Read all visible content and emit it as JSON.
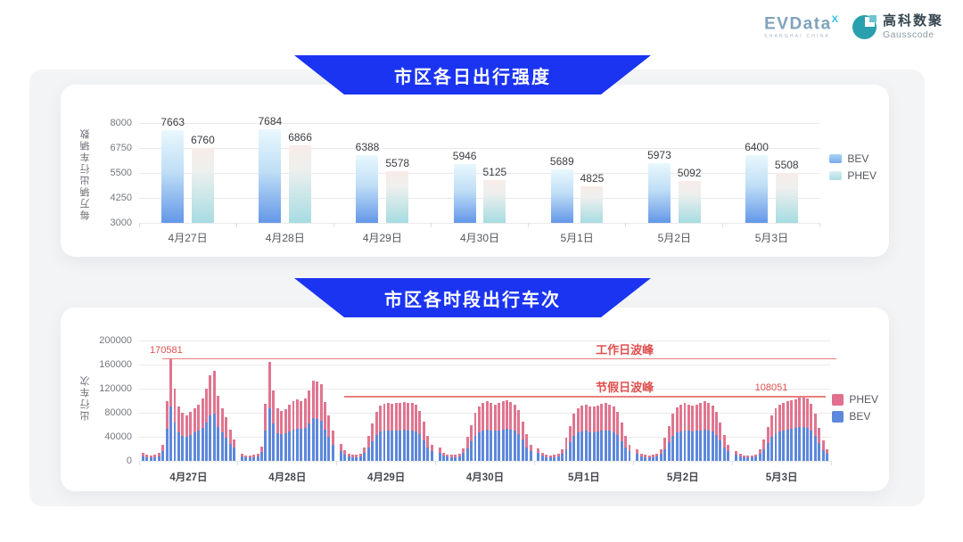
{
  "header": {
    "evdata_logo": {
      "wordmark": "EVData",
      "sup": "X",
      "subtext": "SHANGHAI CHINA"
    },
    "gausscode_logo": {
      "cn": "高科数聚",
      "en": "Gausscode"
    }
  },
  "banners": [
    {
      "title": "市区各日出行强度"
    },
    {
      "title": "市区各时段出行车次"
    }
  ],
  "colors": {
    "banner_blue": "#1b34f1",
    "annotation_red": "#e0514f",
    "bev_gradient_bottom": "#6397e8",
    "bev_gradient_top": "#e9f8fd",
    "phev_gradient_top": "#f8ece8",
    "phev_gradient_bottom": "#a6dce2",
    "stack_bev_blue": "#5d88db",
    "stack_phev_pink": "#e0758f"
  },
  "chart_data": [
    {
      "type": "bar",
      "title": "市区各日出行强度",
      "ylabel": "每万辆出行车辆数",
      "categories": [
        "4月27日",
        "4月28日",
        "4月29日",
        "4月30日",
        "5月1日",
        "5月2日",
        "5月3日"
      ],
      "series": [
        {
          "name": "BEV",
          "values": [
            7663,
            7684,
            6388,
            5946,
            5689,
            5973,
            6400
          ]
        },
        {
          "name": "PHEV",
          "values": [
            6760,
            6866,
            5578,
            5125,
            4825,
            5092,
            5508
          ]
        }
      ],
      "ylim": [
        3000,
        8000
      ],
      "yticks": [
        3000,
        4250,
        5500,
        6750,
        8000
      ],
      "grid": true,
      "legend": [
        "BEV",
        "PHEV"
      ],
      "legend_position": "right"
    },
    {
      "type": "stacked-bar",
      "title": "市区各时段出行车次",
      "ylabel": "出行车次",
      "ylim": [
        0,
        200000
      ],
      "yticks": [
        0,
        40000,
        80000,
        120000,
        160000,
        200000
      ],
      "grid": true,
      "legend": [
        "PHEV",
        "BEV"
      ],
      "legend_position": "right",
      "annotations": [
        {
          "text": "工作日波峰",
          "value_label": "170581",
          "value": 170581
        },
        {
          "text": "节假日波峰",
          "value_label": "108051",
          "value": 108051
        }
      ],
      "days": [
        {
          "label": "4月27日",
          "total": [
            13000,
            10000,
            9000,
            10500,
            13000,
            26000,
            100000,
            170581,
            120000,
            91000,
            80000,
            76000,
            81000,
            88000,
            94000,
            104000,
            120000,
            143000,
            149000,
            108000,
            88000,
            73000,
            52000,
            35000
          ],
          "bev": [
            8000,
            6200,
            5600,
            6500,
            8000,
            16000,
            53000,
            91000,
            64000,
            48000,
            42000,
            40000,
            43000,
            47000,
            50000,
            55000,
            64000,
            76000,
            79000,
            57000,
            47000,
            39000,
            28000,
            22000
          ]
        },
        {
          "label": "4月28日",
          "total": [
            12000,
            9500,
            8500,
            10000,
            12500,
            24000,
            95000,
            164000,
            117000,
            87000,
            83000,
            86000,
            93000,
            99000,
            102000,
            100000,
            104000,
            117000,
            134000,
            132000,
            127000,
            98000,
            75000,
            50000
          ],
          "bev": [
            7400,
            5900,
            5300,
            6200,
            7800,
            15000,
            50000,
            87000,
            62000,
            46000,
            44000,
            46000,
            49000,
            52000,
            54000,
            53000,
            55000,
            62000,
            71000,
            70000,
            67000,
            52000,
            40000,
            27000
          ]
        },
        {
          "label": "4月29日",
          "total": [
            28000,
            18000,
            12000,
            10000,
            10500,
            12000,
            22000,
            42000,
            62000,
            82000,
            92000,
            95000,
            97000,
            95000,
            96000,
            97000,
            98000,
            96000,
            97000,
            93000,
            83000,
            65000,
            42000,
            26000
          ],
          "bev": [
            17000,
            11000,
            7400,
            6200,
            6500,
            7400,
            14000,
            22000,
            33000,
            43000,
            49000,
            50000,
            51000,
            50000,
            51000,
            51000,
            52000,
            51000,
            51000,
            49000,
            44000,
            34000,
            22000,
            16000
          ]
        },
        {
          "label": "4月30日",
          "total": [
            22000,
            14000,
            11000,
            10000,
            10500,
            12000,
            21000,
            40000,
            60000,
            80000,
            91000,
            96000,
            99000,
            96000,
            94000,
            96000,
            99000,
            101000,
            98000,
            94000,
            84000,
            66000,
            44000,
            27000
          ],
          "bev": [
            14000,
            8700,
            6800,
            6200,
            6500,
            7400,
            13000,
            21000,
            32000,
            42000,
            48000,
            51000,
            52000,
            51000,
            50000,
            51000,
            52000,
            54000,
            52000,
            50000,
            45000,
            35000,
            23000,
            17000
          ]
        },
        {
          "label": "5月1日",
          "total": [
            21000,
            13500,
            10500,
            9500,
            10000,
            11500,
            20000,
            38000,
            58000,
            78000,
            88000,
            92000,
            94000,
            91000,
            90000,
            92000,
            95000,
            96000,
            94000,
            90000,
            81000,
            63000,
            42000,
            26000
          ],
          "bev": [
            13000,
            8400,
            6500,
            5900,
            6200,
            7100,
            12000,
            20000,
            31000,
            41000,
            47000,
            49000,
            50000,
            48000,
            48000,
            49000,
            50000,
            51000,
            50000,
            48000,
            43000,
            33000,
            22000,
            16000
          ]
        },
        {
          "label": "5月2日",
          "total": [
            19000,
            12500,
            10000,
            9500,
            10000,
            11500,
            20000,
            38000,
            58000,
            79000,
            89000,
            93000,
            96000,
            94000,
            92000,
            94000,
            97000,
            99000,
            96000,
            92000,
            82000,
            64000,
            43000,
            26000
          ],
          "bev": [
            12000,
            7800,
            6200,
            5900,
            6200,
            7100,
            12000,
            20000,
            31000,
            42000,
            47000,
            49000,
            51000,
            50000,
            49000,
            50000,
            51000,
            52000,
            51000,
            49000,
            43000,
            34000,
            23000,
            16000
          ]
        },
        {
          "label": "5月3日",
          "total": [
            17000,
            11500,
            9500,
            9000,
            9500,
            11000,
            19000,
            36000,
            56000,
            76000,
            87000,
            93000,
            97000,
            99000,
            101000,
            103000,
            105000,
            108051,
            104000,
            95000,
            78000,
            55000,
            34000,
            20000
          ],
          "bev": [
            11000,
            7100,
            5900,
            5600,
            5900,
            6800,
            12000,
            19000,
            30000,
            40000,
            46000,
            49000,
            51000,
            52000,
            54000,
            55000,
            56000,
            57000,
            55000,
            50000,
            41000,
            29000,
            18000,
            12000
          ]
        }
      ]
    }
  ]
}
